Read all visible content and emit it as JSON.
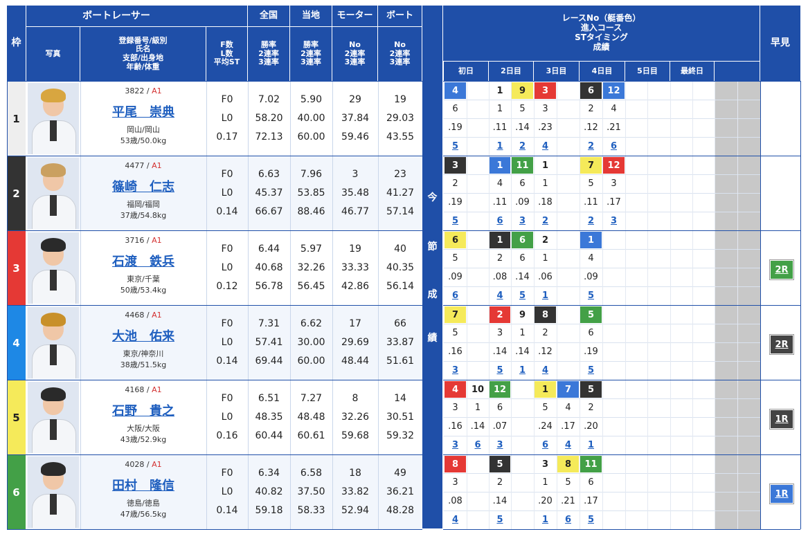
{
  "headers": {
    "waku": "枠",
    "boat_racer": "ボートレーサー",
    "photo": "写真",
    "profile": [
      "登録番号/級別",
      "氏名",
      "支部/出身地",
      "年齢/体重"
    ],
    "fl": [
      "F数",
      "L数",
      "平均ST"
    ],
    "national": "全国",
    "national_sub": [
      "勝率",
      "2連率",
      "3連率"
    ],
    "local": "当地",
    "local_sub": [
      "勝率",
      "2連率",
      "3連率"
    ],
    "motor": "モーター",
    "motor_sub": [
      "No",
      "2連率",
      "3連率"
    ],
    "boat": "ボート",
    "boat_sub": [
      "No",
      "2連率",
      "3連率"
    ],
    "series_side": [
      "今",
      "節",
      "成",
      "績"
    ],
    "race_info": [
      "レースNo（艇番色）",
      "進入コース",
      "STタイミング",
      "成績"
    ],
    "days": [
      "初日",
      "2日目",
      "3日目",
      "4日目",
      "5日目",
      "最終日"
    ],
    "hayami": "早見"
  },
  "colors": {
    "header_bg": "#1f4fa8",
    "boat_colors": [
      "#ffffff",
      "#333333",
      "#e53935",
      "#1e88e5",
      "#f5ea5a",
      "#43a047"
    ]
  },
  "racers": [
    {
      "waku": "1",
      "regno": "3822",
      "class": "A1",
      "name": "平尾　崇典",
      "branch": "岡山/岡山",
      "age_weight": "53歳/50.0kg",
      "f": "F0",
      "l": "L0",
      "st": "0.17",
      "nat": [
        "7.02",
        "58.20",
        "72.13"
      ],
      "loc": [
        "5.90",
        "40.00",
        "60.00"
      ],
      "motor": [
        "29",
        "37.84",
        "59.46"
      ],
      "boat": [
        "19",
        "29.03",
        "43.55"
      ],
      "hayami": ""
    },
    {
      "waku": "2",
      "regno": "4477",
      "class": "A1",
      "name": "篠崎　仁志",
      "branch": "福岡/福岡",
      "age_weight": "37歳/54.8kg",
      "f": "F0",
      "l": "L0",
      "st": "0.14",
      "nat": [
        "6.63",
        "45.37",
        "66.67"
      ],
      "loc": [
        "7.96",
        "53.85",
        "88.46"
      ],
      "motor": [
        "3",
        "35.48",
        "46.77"
      ],
      "boat": [
        "23",
        "41.27",
        "57.14"
      ],
      "hayami": ""
    },
    {
      "waku": "3",
      "regno": "3716",
      "class": "A1",
      "name": "石渡　鉄兵",
      "branch": "東京/千葉",
      "age_weight": "50歳/53.4kg",
      "f": "F0",
      "l": "L0",
      "st": "0.12",
      "nat": [
        "6.44",
        "40.68",
        "56.78"
      ],
      "loc": [
        "5.97",
        "32.26",
        "56.45"
      ],
      "motor": [
        "19",
        "33.33",
        "42.86"
      ],
      "boat": [
        "40",
        "40.35",
        "56.14"
      ],
      "hayami": "2R"
    },
    {
      "waku": "4",
      "regno": "4468",
      "class": "A1",
      "name": "大池　佑来",
      "branch": "東京/神奈川",
      "age_weight": "38歳/51.5kg",
      "f": "F0",
      "l": "L0",
      "st": "0.14",
      "nat": [
        "7.31",
        "57.41",
        "69.44"
      ],
      "loc": [
        "6.62",
        "30.00",
        "60.00"
      ],
      "motor": [
        "17",
        "29.69",
        "48.44"
      ],
      "boat": [
        "66",
        "33.87",
        "51.61"
      ],
      "hayami": "2R"
    },
    {
      "waku": "5",
      "regno": "4168",
      "class": "A1",
      "name": "石野　貴之",
      "branch": "大阪/大阪",
      "age_weight": "43歳/52.9kg",
      "f": "F0",
      "l": "L0",
      "st": "0.16",
      "nat": [
        "6.51",
        "48.35",
        "60.44"
      ],
      "loc": [
        "7.27",
        "48.48",
        "60.61"
      ],
      "motor": [
        "8",
        "32.26",
        "59.68"
      ],
      "boat": [
        "14",
        "30.51",
        "59.32"
      ],
      "hayami": "1R"
    },
    {
      "waku": "6",
      "regno": "4028",
      "class": "A1",
      "name": "田村　隆信",
      "branch": "徳島/徳島",
      "age_weight": "47歳/56.5kg",
      "f": "F0",
      "l": "L0",
      "st": "0.14",
      "nat": [
        "6.34",
        "40.82",
        "59.18"
      ],
      "loc": [
        "6.58",
        "37.50",
        "58.33"
      ],
      "motor": [
        "18",
        "33.82",
        "52.94"
      ],
      "boat": [
        "49",
        "36.21",
        "48.28"
      ],
      "hayami": "1R"
    }
  ],
  "series": [
    [
      {
        "race": "4",
        "boat": 4,
        "course": "6",
        "st": ".19",
        "result": "5"
      },
      null,
      {
        "race": "1",
        "boat": 1,
        "course": "1",
        "st": ".11",
        "result": "1"
      },
      {
        "race": "9",
        "boat": 5,
        "course": "5",
        "st": ".14",
        "result": "2"
      },
      {
        "race": "3",
        "boat": 3,
        "course": "3",
        "st": ".23",
        "result": "4"
      },
      null,
      {
        "race": "6",
        "boat": 2,
        "course": "2",
        "st": ".12",
        "result": "2"
      },
      {
        "race": "12",
        "boat": 4,
        "course": "4",
        "st": ".21",
        "result": "6"
      }
    ],
    [
      {
        "race": "3",
        "boat": 2,
        "course": "2",
        "st": ".19",
        "result": "5"
      },
      null,
      {
        "race": "1",
        "boat": 4,
        "course": "4",
        "st": ".11",
        "result": "6"
      },
      {
        "race": "11",
        "boat": 6,
        "course": "6",
        "st": ".09",
        "result": "3"
      },
      {
        "race": "1",
        "boat": 1,
        "course": "1",
        "st": ".18",
        "result": "2"
      },
      null,
      {
        "race": "7",
        "boat": 5,
        "course": "5",
        "st": ".11",
        "result": "2"
      },
      {
        "race": "12",
        "boat": 3,
        "course": "3",
        "st": ".17",
        "result": "3"
      }
    ],
    [
      {
        "race": "6",
        "boat": 5,
        "course": "5",
        "st": ".09",
        "result": "6"
      },
      null,
      {
        "race": "1",
        "boat": 2,
        "course": "2",
        "st": ".08",
        "result": "4"
      },
      {
        "race": "6",
        "boat": 6,
        "course": "6",
        "st": ".14",
        "result": "5"
      },
      {
        "race": "2",
        "boat": 1,
        "course": "1",
        "st": ".06",
        "result": "1"
      },
      null,
      {
        "race": "1",
        "boat": 4,
        "course": "4",
        "st": ".09",
        "result": "5"
      },
      null
    ],
    [
      {
        "race": "7",
        "boat": 5,
        "course": "5",
        "st": ".16",
        "result": "3"
      },
      null,
      {
        "race": "2",
        "boat": 3,
        "course": "3",
        "st": ".14",
        "result": "5"
      },
      {
        "race": "9",
        "boat": 1,
        "course": "1",
        "st": ".14",
        "result": "1"
      },
      {
        "race": "8",
        "boat": 2,
        "course": "2",
        "st": ".12",
        "result": "4"
      },
      null,
      {
        "race": "5",
        "boat": 6,
        "course": "6",
        "st": ".19",
        "result": "5"
      },
      null
    ],
    [
      {
        "race": "4",
        "boat": 3,
        "course": "3",
        "st": ".16",
        "result": "3"
      },
      {
        "race": "10",
        "boat": 1,
        "course": "1",
        "st": ".14",
        "result": "6"
      },
      {
        "race": "12",
        "boat": 6,
        "course": "6",
        "st": ".07",
        "result": "3"
      },
      null,
      {
        "race": "1",
        "boat": 5,
        "course": "5",
        "st": ".24",
        "result": "6"
      },
      {
        "race": "7",
        "boat": 4,
        "course": "4",
        "st": ".17",
        "result": "4"
      },
      {
        "race": "5",
        "boat": 2,
        "course": "2",
        "st": ".20",
        "result": "1"
      },
      null
    ],
    [
      {
        "race": "8",
        "boat": 3,
        "course": "3",
        "st": ".08",
        "result": "4"
      },
      null,
      {
        "race": "5",
        "boat": 2,
        "course": "2",
        "st": ".14",
        "result": "5"
      },
      null,
      {
        "race": "3",
        "boat": 1,
        "course": "1",
        "st": ".20",
        "result": "1"
      },
      {
        "race": "8",
        "boat": 5,
        "course": "5",
        "st": ".21",
        "result": "6"
      },
      {
        "race": "11",
        "boat": 6,
        "course": "6",
        "st": ".17",
        "result": "5"
      },
      null
    ]
  ]
}
